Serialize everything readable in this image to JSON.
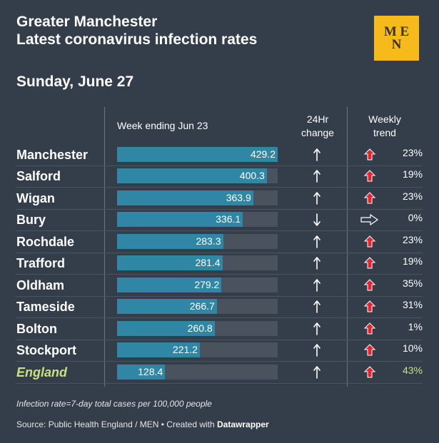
{
  "header": {
    "title_line1": "Greater Manchester",
    "title_line2": "Latest coronavirus infection rates",
    "date": "Sunday, June 27",
    "logo_top": "M E",
    "logo_bottom": "N"
  },
  "columns": {
    "week": "Week ending Jun 23",
    "change_line1": "24Hr",
    "change_line2": "change",
    "trend_line1": "Weekly",
    "trend_line2": "trend"
  },
  "colors": {
    "background": "#343d4a",
    "bar": "#2f87a5",
    "bar_track": "#4a525e",
    "trend_up": "#e8212b",
    "highlight": "#c9e27d",
    "logo": "#f6bb1a"
  },
  "chart_data": {
    "type": "bar",
    "orientation": "horizontal",
    "title": "Latest coronavirus infection rates",
    "xlim": [
      0,
      429.2
    ],
    "categories": [
      "Manchester",
      "Salford",
      "Wigan",
      "Bury",
      "Rochdale",
      "Trafford",
      "Oldham",
      "Tameside",
      "Bolton",
      "Stockport",
      "England"
    ],
    "values": [
      429.2,
      400.3,
      363.9,
      336.1,
      283.3,
      281.4,
      279.2,
      266.7,
      260.8,
      221.2,
      128.4
    ],
    "value_labels": [
      "429.2",
      "400.3",
      "363.9",
      "336.1",
      "283.3",
      "281.4",
      "279.2",
      "266.7",
      "260.8",
      "221.2",
      "128.4"
    ],
    "change_24hr": [
      "up",
      "up",
      "up",
      "down",
      "up",
      "up",
      "up",
      "up",
      "up",
      "up",
      "up"
    ],
    "weekly_trend": [
      "up",
      "up",
      "up",
      "flat",
      "up",
      "up",
      "up",
      "up",
      "up",
      "up",
      "up"
    ],
    "weekly_trend_pct": [
      "23%",
      "19%",
      "23%",
      "0%",
      "23%",
      "19%",
      "35%",
      "31%",
      "1%",
      "10%",
      "43%"
    ]
  },
  "footer": {
    "note": "Infection rate=7-day total cases per 100,000 people",
    "source_prefix": "Source: Public Health England / MEN • Created with ",
    "source_tool": "Datawrapper"
  }
}
